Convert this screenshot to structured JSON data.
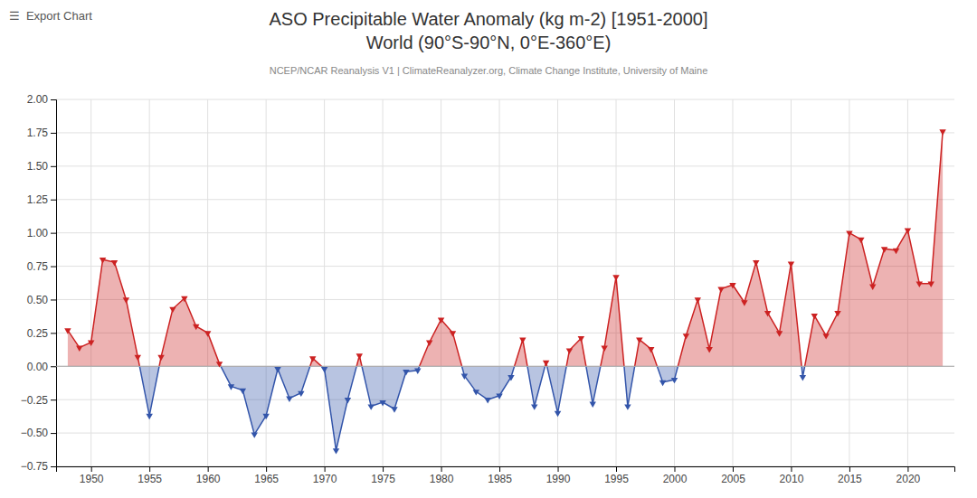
{
  "chart_data": {
    "type": "area",
    "title": [
      "ASO Precipitable Water Anomaly (kg m-2) [1951-2000]",
      "World (90°S-90°N, 0°E-360°E)"
    ],
    "subtitle": "NCEP/NCAR Reanalysis V1 | ClimateReanalyzer.org, Climate Change Institute, University of Maine",
    "annotations": [
      "☰  Export Chart"
    ],
    "x": [
      1948,
      1949,
      1950,
      1951,
      1952,
      1953,
      1954,
      1955,
      1956,
      1957,
      1958,
      1959,
      1960,
      1961,
      1962,
      1963,
      1964,
      1965,
      1966,
      1967,
      1968,
      1969,
      1970,
      1971,
      1972,
      1973,
      1974,
      1975,
      1976,
      1977,
      1978,
      1979,
      1980,
      1981,
      1982,
      1983,
      1984,
      1985,
      1986,
      1987,
      1988,
      1989,
      1990,
      1991,
      1992,
      1993,
      1994,
      1995,
      1996,
      1997,
      1998,
      1999,
      2000,
      2001,
      2002,
      2003,
      2004,
      2005,
      2006,
      2007,
      2008,
      2009,
      2010,
      2011,
      2012,
      2013,
      2014,
      2015,
      2016,
      2017,
      2018,
      2019,
      2020,
      2021,
      2022,
      2023
    ],
    "values": [
      0.27,
      0.14,
      0.18,
      0.8,
      0.78,
      0.5,
      0.07,
      -0.37,
      0.07,
      0.43,
      0.51,
      0.3,
      0.25,
      0.02,
      -0.15,
      -0.18,
      -0.51,
      -0.37,
      -0.02,
      -0.24,
      -0.2,
      0.06,
      -0.02,
      -0.63,
      -0.25,
      0.08,
      -0.3,
      -0.27,
      -0.32,
      -0.04,
      -0.03,
      0.18,
      0.35,
      0.25,
      -0.07,
      -0.19,
      -0.25,
      -0.22,
      -0.08,
      0.2,
      -0.3,
      0.03,
      -0.35,
      0.12,
      0.21,
      -0.28,
      0.14,
      0.67,
      -0.3,
      0.2,
      0.13,
      -0.12,
      -0.1,
      0.23,
      0.5,
      0.13,
      0.58,
      0.61,
      0.48,
      0.78,
      0.4,
      0.25,
      0.77,
      -0.08,
      0.38,
      0.23,
      0.4,
      1.0,
      0.95,
      0.6,
      0.88,
      0.87,
      1.02,
      0.62,
      0.62,
      1.76
    ],
    "color": {
      "positive": "#cc2222",
      "negative": "#3355aa"
    },
    "marker": "triangle-down",
    "line_style": "solid",
    "xlim": [
      1947,
      2024
    ],
    "xticks": [
      1950,
      1955,
      1960,
      1965,
      1970,
      1975,
      1980,
      1985,
      1990,
      1995,
      2000,
      2005,
      2010,
      2015,
      2020
    ],
    "ylim": [
      -0.75,
      2.0
    ],
    "yticks": [
      {
        "value": -0.75,
        "label": "−0.75"
      },
      {
        "value": -0.5,
        "label": "−0.50"
      },
      {
        "value": -0.25,
        "label": "−0.25"
      },
      {
        "value": 0,
        "label": "0.00"
      },
      {
        "value": 0.25,
        "label": "0.25"
      },
      {
        "value": 0.5,
        "label": "0.50"
      },
      {
        "value": 0.75,
        "label": "0.75"
      },
      {
        "value": 1.0,
        "label": "1.00"
      },
      {
        "value": 1.25,
        "label": "1.25"
      },
      {
        "value": 1.5,
        "label": "1.50"
      },
      {
        "value": 1.75,
        "label": "1.75"
      },
      {
        "value": 2.0,
        "label": "2.00"
      }
    ],
    "grid": true
  }
}
